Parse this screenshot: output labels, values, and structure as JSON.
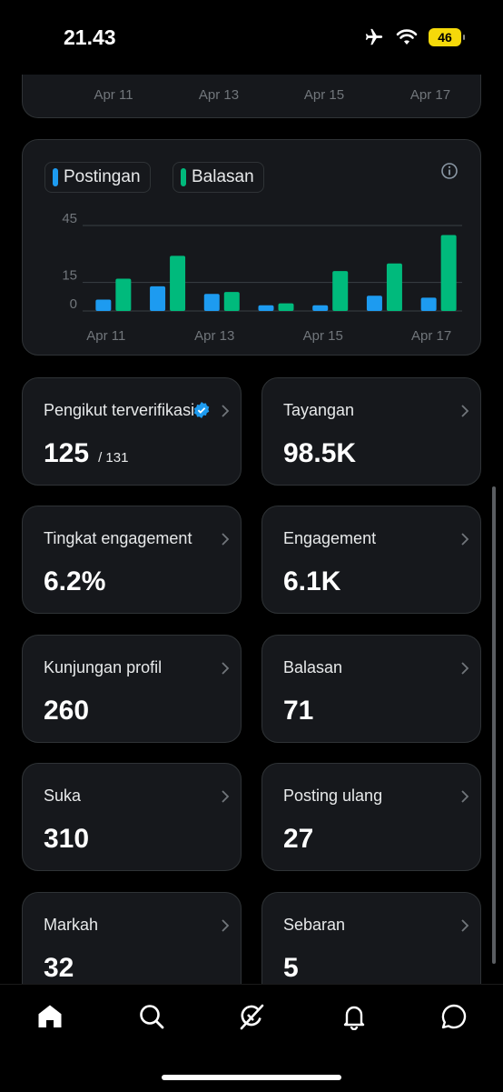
{
  "status_bar": {
    "time": "21.43",
    "battery": "46"
  },
  "top_chart": {
    "ticks": [
      "Apr 11",
      "Apr 13",
      "Apr 15",
      "Apr 17"
    ]
  },
  "chart_data": {
    "type": "bar",
    "categories": [
      "Apr 11",
      "Apr 12",
      "Apr 13",
      "Apr 14",
      "Apr 15",
      "Apr 16",
      "Apr 17"
    ],
    "series": [
      {
        "name": "Postingan",
        "values": [
          6,
          13,
          9,
          3,
          3,
          8,
          7
        ],
        "color": "#1d9bf0"
      },
      {
        "name": "Balasan",
        "values": [
          17,
          29,
          10,
          4,
          21,
          25,
          40
        ],
        "color": "#00ba7c"
      }
    ],
    "x_tick_labels": [
      "Apr 11",
      "Apr 13",
      "Apr 15",
      "Apr 17"
    ],
    "y_ticks": [
      0,
      15,
      45
    ],
    "ylim": [
      0,
      45
    ]
  },
  "stats": [
    {
      "label": "Pengikut terverifikasi",
      "value": "125",
      "suffix": "/ 131",
      "verified": true
    },
    {
      "label": "Tayangan",
      "value": "98.5K"
    },
    {
      "label": "Tingkat engagement",
      "value": "6.2%"
    },
    {
      "label": "Engagement",
      "value": "6.1K"
    },
    {
      "label": "Kunjungan profil",
      "value": "260"
    },
    {
      "label": "Balasan",
      "value": "71"
    },
    {
      "label": "Suka",
      "value": "310"
    },
    {
      "label": "Posting ulang",
      "value": "27"
    },
    {
      "label": "Markah",
      "value": "32"
    },
    {
      "label": "Sebaran",
      "value": "5"
    }
  ],
  "nav": [
    "home-icon",
    "search-icon",
    "grok-icon",
    "notifications-icon",
    "messages-icon"
  ]
}
